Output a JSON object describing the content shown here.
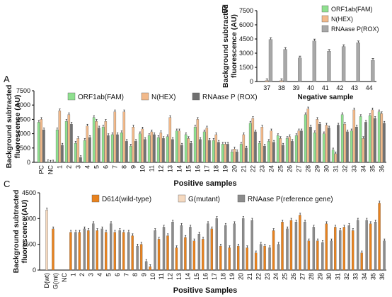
{
  "panel_labels": [
    "A",
    "B",
    "C"
  ],
  "chart_data": [
    {
      "panel": "A",
      "type": "bar",
      "ylabel": "Background subtracted\nfluorescence (AU)",
      "xlabel": "Positive samples",
      "ylim": [
        0,
        7500
      ],
      "yticks": [
        "0",
        "1500",
        "3000",
        "4500",
        "6000",
        "7500"
      ],
      "categories": [
        "PC",
        "NC",
        "1",
        "2",
        "3",
        "4",
        "5",
        "6",
        "7",
        "8",
        "9",
        "10",
        "11",
        "12",
        "13",
        "14",
        "15",
        "16",
        "17",
        "18",
        "19",
        "20",
        "21",
        "22",
        "23",
        "24",
        "25",
        "26",
        "27",
        "28",
        "29",
        "30",
        "31",
        "32",
        "33",
        "34",
        "35",
        "36"
      ],
      "legend_placement": "top",
      "series": [
        {
          "name": "ORF1ab(FAM)",
          "color": "#8fe08f",
          "values": [
            4200,
            60,
            3400,
            4300,
            2000,
            2300,
            4700,
            3700,
            2900,
            3100,
            1700,
            3000,
            2800,
            2600,
            2700,
            3300,
            2900,
            3700,
            3200,
            2300,
            1900,
            1100,
            1900,
            4100,
            2000,
            2200,
            2800,
            2500,
            2800,
            5000,
            3100,
            3000,
            1300,
            5000,
            3300,
            4800,
            4900,
            5300
          ]
        },
        {
          "name": "N(HEX)",
          "color": "#f2b98a",
          "values": [
            4500,
            20,
            5400,
            5000,
            2500,
            3800,
            4300,
            4300,
            5300,
            5300,
            3700,
            3500,
            3200,
            3100,
            4700,
            3300,
            2500,
            4500,
            3600,
            2900,
            1900,
            1400,
            2900,
            4600,
            3700,
            3300,
            2500,
            2700,
            3300,
            5600,
            4500,
            3900,
            900,
            4000,
            5500,
            2500,
            5500,
            5100
          ]
        },
        {
          "name": "RNAase P (ROX)",
          "color": "#707070",
          "values": [
            3400,
            40,
            1800,
            4000,
            500,
            2600,
            3600,
            2800,
            2900,
            2200,
            2200,
            2400,
            2900,
            2500,
            2400,
            1800,
            2000,
            2400,
            2300,
            2100,
            1900,
            1100,
            1500,
            3200,
            1700,
            2100,
            1800,
            2200,
            3300,
            3700,
            4000,
            3600,
            3900,
            3200,
            3700,
            4200,
            4600,
            4100
          ]
        }
      ]
    },
    {
      "panel": "B",
      "type": "bar",
      "ylabel": "Background subtracted\nfluorescence (AU)",
      "xlabel": "Negative sample",
      "ylim": [
        0,
        7500
      ],
      "yticks": [
        "0",
        "1500",
        "3000",
        "4500",
        "6000",
        "7500"
      ],
      "categories": [
        "37",
        "38",
        "39",
        "40",
        "41",
        "42",
        "43",
        "44"
      ],
      "legend_placement": "top-right",
      "series": [
        {
          "name": "ORF1ab(FAM)",
          "color": "#8fe08f",
          "values": [
            0,
            0,
            0,
            0,
            0,
            0,
            0,
            0
          ]
        },
        {
          "name": "N(HEX)",
          "color": "#f2b98a",
          "values": [
            100,
            100,
            0,
            0,
            0,
            0,
            0,
            0
          ]
        },
        {
          "name": "RNAase P(ROX)",
          "color": "#a8a8a8",
          "values": [
            4450,
            3400,
            2500,
            4300,
            3200,
            3700,
            4100,
            2250
          ]
        }
      ]
    },
    {
      "panel": "C",
      "type": "bar",
      "ylabel": "Background subtracted\nfluorescence (AU)",
      "xlabel": "Positive Samples",
      "ylim": [
        0,
        4500
      ],
      "yticks": [
        "0",
        "1500",
        "3000",
        "4500"
      ],
      "categories": [
        "D(wt)",
        "G(mt)",
        "NC",
        "1",
        "2",
        "3",
        "4",
        "5",
        "6",
        "7",
        "8",
        "9",
        "10",
        "11",
        "12",
        "13",
        "14",
        "15",
        "16",
        "17",
        "18",
        "19",
        "20",
        "21",
        "22",
        "23",
        "24",
        "25",
        "26",
        "27",
        "28",
        "29",
        "30",
        "31",
        "32",
        "33",
        "34",
        "35",
        "36"
      ],
      "legend_placement": "top",
      "series": [
        {
          "name": "D614(wild-type)",
          "color": "#e8821e",
          "values": [
            0,
            2400,
            0,
            2200,
            2200,
            2300,
            2300,
            2200,
            2200,
            2200,
            2000,
            1500,
            200,
            1800,
            2000,
            1300,
            1900,
            1700,
            1800,
            2400,
            1400,
            1300,
            1400,
            1300,
            1000,
            1400,
            2300,
            2800,
            2900,
            3200,
            1700,
            1700,
            2700,
            2500,
            2500,
            2300,
            1000,
            2700,
            3900
          ]
        },
        {
          "name": "G(mutant)",
          "color": "#f5d9bf",
          "values": [
            3500,
            0,
            0,
            0,
            0,
            0,
            0,
            0,
            0,
            0,
            0,
            0,
            0,
            0,
            0,
            0,
            0,
            0,
            0,
            0,
            0,
            0,
            0,
            0,
            0,
            0,
            0,
            0,
            0,
            0,
            0,
            0,
            0,
            0,
            0,
            0,
            0,
            0,
            0
          ]
        },
        {
          "name": "RNAase P(reference gene)",
          "color": "#8c8c8c",
          "values": [
            0,
            0,
            0,
            2200,
            2400,
            2700,
            2400,
            2700,
            2300,
            2200,
            1400,
            500,
            2300,
            2500,
            2800,
            2600,
            2500,
            2100,
            2700,
            3000,
            2600,
            2700,
            3000,
            2900,
            1500,
            1300,
            1500,
            2400,
            2800,
            2800,
            2500,
            1600,
            1700,
            2300,
            2600,
            2900,
            2900,
            2800,
            1700
          ]
        }
      ]
    }
  ]
}
